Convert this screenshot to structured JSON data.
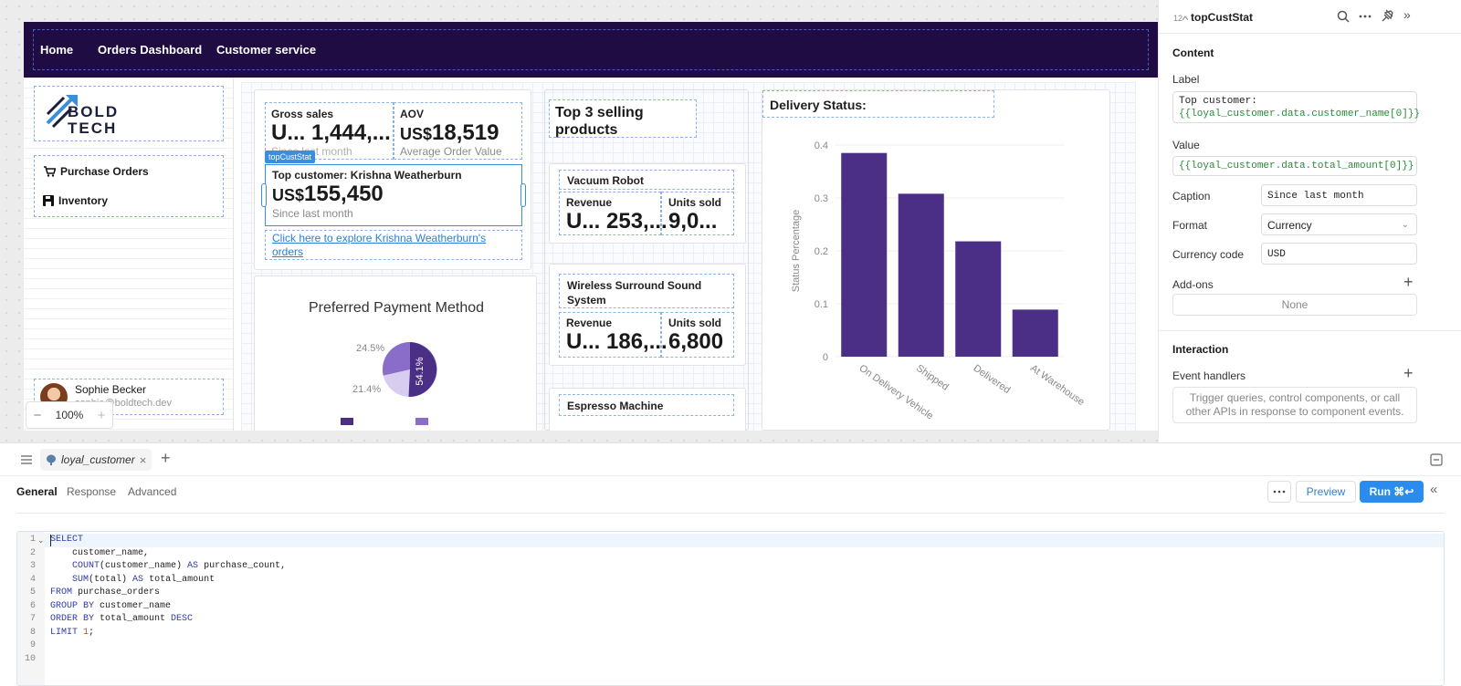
{
  "nav": {
    "home": "Home",
    "orders": "Orders Dashboard",
    "service": "Customer service"
  },
  "logo": {
    "line1": "BOLD",
    "line2": "TECH"
  },
  "sidebar": {
    "items": [
      {
        "label": "Purchase Orders",
        "icon": "cart-icon"
      },
      {
        "label": "Inventory",
        "icon": "floppy-icon"
      }
    ]
  },
  "user": {
    "name": "Sophie Becker",
    "email": "sophie@boldtech.dev"
  },
  "zoom": {
    "value": "100%",
    "minus": "−",
    "plus": "+"
  },
  "stats": {
    "gross": {
      "label": "Gross sales",
      "value": "U... 1,444,...",
      "caption": "Since last month"
    },
    "aov": {
      "label": "AOV",
      "prefix": "US$",
      "value": "18,519",
      "caption": "Average Order Value"
    },
    "top": {
      "badge": "topCustStat",
      "label": "Top customer: Krishna Weatherburn",
      "prefix": "US$",
      "value": "155,450",
      "caption": "Since last month"
    },
    "link": "Click here to explore Krishna Weatherburn's orders"
  },
  "payment": {
    "title": "Preferred Payment Method",
    "pct1": "24.5%",
    "pct2": "21.4%",
    "pct3": "54.1%",
    "colors": [
      "#4b2f86",
      "#8a6cc9",
      "#d8cdf0"
    ]
  },
  "products": {
    "title": "Top 3 selling products",
    "items": [
      {
        "name": "Vacuum Robot",
        "rev_label": "Revenue",
        "rev": "U... 253,...",
        "units_label": "Units sold",
        "units": "9,0..."
      },
      {
        "name": "Wireless Surround Sound System",
        "rev_label": "Revenue",
        "rev": "U... 186,...",
        "units_label": "Units sold",
        "units": "6,800"
      },
      {
        "name": "Espresso Machine"
      }
    ]
  },
  "delivery": {
    "title": "Delivery Status:"
  },
  "chart_data": {
    "type": "bar",
    "categories": [
      "On Delivery Vehicle",
      "Shipped",
      "Delivered",
      "At Warehouse"
    ],
    "values": [
      0.385,
      0.308,
      0.218,
      0.089
    ],
    "ylabel": "Status Percentage",
    "ylim": [
      0,
      0.4
    ],
    "yticks": [
      "0",
      "0.1",
      "0.2",
      "0.3",
      "0.4"
    ],
    "color": "#4b2f86"
  },
  "panel": {
    "component": "topCustStat",
    "content": "Content",
    "label_title": "Label",
    "label_line1": "Top customer:",
    "label_line2": "{{loyal_customer.data.customer_name[0]}}",
    "value_title": "Value",
    "value_text": "{{loyal_customer.data.total_amount[0]}}",
    "caption_title": "Caption",
    "caption_val": "Since last month",
    "format_title": "Format",
    "format_val": "Currency",
    "currency_title": "Currency code",
    "currency_val": "USD",
    "addons_title": "Add-ons",
    "addons_val": "None",
    "interaction": "Interaction",
    "events_title": "Event handlers",
    "events_text": "Trigger queries, control components, or call other APIs in response to component events."
  },
  "query": {
    "tab": "loyal_customer",
    "tabs": [
      "General",
      "Response",
      "Advanced"
    ],
    "preview": "Preview",
    "run": "Run ⌘↩"
  },
  "code": [
    [
      {
        "t": "SELECT",
        "c": "kw"
      }
    ],
    [
      {
        "t": "    customer_name,"
      }
    ],
    [
      {
        "t": "    "
      },
      {
        "t": "COUNT",
        "c": "fn"
      },
      {
        "t": "(customer_name) "
      },
      {
        "t": "AS",
        "c": "kw"
      },
      {
        "t": " purchase_count,"
      }
    ],
    [
      {
        "t": "    "
      },
      {
        "t": "SUM",
        "c": "fn"
      },
      {
        "t": "(total) "
      },
      {
        "t": "AS",
        "c": "kw"
      },
      {
        "t": " total_amount"
      }
    ],
    [
      {
        "t": "FROM",
        "c": "kw"
      },
      {
        "t": " purchase_orders"
      }
    ],
    [
      {
        "t": "GROUP BY",
        "c": "kw"
      },
      {
        "t": " customer_name"
      }
    ],
    [
      {
        "t": "ORDER BY",
        "c": "kw"
      },
      {
        "t": " total_amount "
      },
      {
        "t": "DESC",
        "c": "kw"
      }
    ],
    [
      {
        "t": "LIMIT",
        "c": "kw"
      },
      {
        "t": " "
      },
      {
        "t": "1",
        "c": "num"
      },
      {
        "t": ";"
      }
    ],
    [
      {
        "t": ""
      }
    ],
    [
      {
        "t": ""
      }
    ]
  ]
}
